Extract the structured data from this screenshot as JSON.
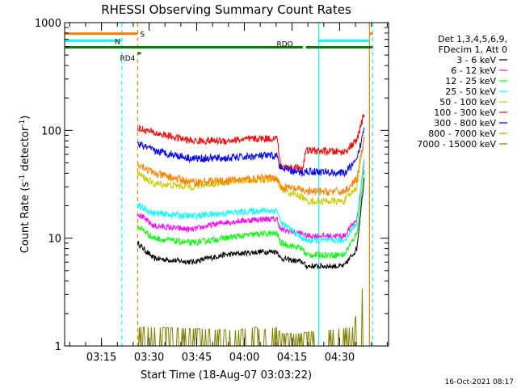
{
  "chart_data": {
    "type": "line",
    "title": "RHESSI Observing Summary Count Rates",
    "xlabel": "Start Time (18-Aug-07 03:03:22)",
    "ylabel_main": "Count Rate (s",
    "ylabel_sup1": "-1",
    "ylabel_mid": " detector",
    "ylabel_sup2": "-1",
    "ylabel_end": ")",
    "y_scale": "log",
    "ylim": [
      1,
      1000
    ],
    "xlim_minutes": [
      0,
      102
    ],
    "x_ticks": [
      {
        "label": "03:15",
        "minutes": 11.6
      },
      {
        "label": "03:30",
        "minutes": 26.6
      },
      {
        "label": "03:45",
        "minutes": 41.6
      },
      {
        "label": "04:00",
        "minutes": 56.6
      },
      {
        "label": "04:15",
        "minutes": 71.6
      },
      {
        "label": "04:30",
        "minutes": 86.6
      }
    ],
    "y_ticks": [
      {
        "label": "1",
        "value": 1
      },
      {
        "label": "10",
        "value": 10
      },
      {
        "label": "100",
        "value": 100
      },
      {
        "label": "1000",
        "value": 1000
      }
    ],
    "legend_header": [
      "Det 1,3,4,5,6,9,",
      "FDecim 1, Att 0"
    ],
    "legend_position": "right",
    "series": [
      {
        "name": "3 - 6 keV",
        "color": "#000000",
        "x": [
          23,
          28,
          40,
          50,
          62,
          67,
          68,
          75,
          76,
          88,
          92,
          94.5
        ],
        "y": [
          9,
          6.5,
          6,
          7,
          7.5,
          7.5,
          6.5,
          6,
          5.5,
          5.5,
          8,
          40
        ]
      },
      {
        "name": "6 - 12 keV",
        "color": "#ff00ff",
        "x": [
          23,
          28,
          40,
          50,
          62,
          67,
          68,
          75,
          76,
          88,
          92,
          94.5
        ],
        "y": [
          17,
          13,
          12,
          14,
          15,
          15,
          12,
          11,
          10.5,
          10.5,
          15,
          55
        ]
      },
      {
        "name": "12 - 25 keV",
        "color": "#00ff00",
        "x": [
          23,
          28,
          40,
          50,
          62,
          67,
          68,
          75,
          76,
          88,
          92,
          94.5
        ],
        "y": [
          13,
          10,
          9,
          10,
          11,
          11,
          9,
          8,
          7,
          7,
          11,
          45
        ]
      },
      {
        "name": "25 - 50 keV",
        "color": "#00ffff",
        "x": [
          23,
          28,
          40,
          50,
          62,
          67,
          68,
          75,
          76,
          88,
          92,
          94.5
        ],
        "y": [
          20,
          17,
          16,
          17,
          18,
          18,
          14,
          10,
          9.5,
          9.5,
          14,
          60
        ]
      },
      {
        "name": "50 - 100 keV",
        "color": "#cccc00",
        "x": [
          23,
          28,
          40,
          50,
          62,
          67,
          68,
          75,
          76,
          88,
          92,
          94.5
        ],
        "y": [
          40,
          32,
          30,
          33,
          35,
          35,
          28,
          24,
          22,
          22,
          30,
          90
        ]
      },
      {
        "name": "100 - 300 keV",
        "color": "#ff0000",
        "x": [
          23,
          28,
          40,
          50,
          62,
          67,
          68,
          75,
          76,
          88,
          92,
          94.5
        ],
        "y": [
          105,
          95,
          80,
          80,
          84,
          84,
          46,
          45,
          65,
          63,
          80,
          150
        ]
      },
      {
        "name": "300 - 800 keV",
        "color": "#0000ff",
        "x": [
          23,
          28,
          40,
          50,
          62,
          67,
          68,
          75,
          76,
          88,
          92,
          94.5
        ],
        "y": [
          75,
          65,
          55,
          55,
          58,
          58,
          44,
          40,
          42,
          40,
          52,
          110
        ]
      },
      {
        "name": "800 - 7000 keV",
        "color": "#ff8000",
        "x": [
          23,
          28,
          40,
          50,
          62,
          67,
          68,
          75,
          76,
          88,
          92,
          94.5
        ],
        "y": [
          50,
          40,
          33,
          34,
          36,
          36,
          30,
          28,
          27,
          27,
          35,
          90
        ]
      },
      {
        "name": "7000 - 15000 keV",
        "color": "#808000",
        "x": [
          23,
          26,
          54,
          60,
          62,
          67,
          68,
          73,
          91,
          93,
          94.5
        ],
        "y": [
          1.5,
          1.5,
          1.4,
          1.5,
          1.4,
          1.5,
          1.3,
          1.3,
          1.5,
          3,
          4
        ]
      }
    ],
    "flag_bars": [
      {
        "label": "S",
        "color": "#ff8000",
        "value": 790,
        "segments": [
          [
            0,
            23
          ],
          [
            96,
            97
          ]
        ]
      },
      {
        "label": "N",
        "color": "#00ffff",
        "value": 680,
        "segments": [
          [
            0,
            18
          ],
          [
            80,
            96
          ]
        ]
      },
      {
        "label": "RDO",
        "color": "#007f00",
        "value": 590,
        "segments": [
          [
            0,
            66
          ],
          [
            66,
            75
          ],
          [
            76,
            97
          ]
        ]
      },
      {
        "label": "RD4",
        "color": "#007f00",
        "value": 520,
        "segments": [
          [
            23,
            24
          ]
        ]
      }
    ],
    "vlines": [
      {
        "minutes": 18,
        "color": "#00ffff",
        "style": "dashed"
      },
      {
        "minutes": 23,
        "color": "#ff8000",
        "style": "dashed"
      },
      {
        "minutes": 80,
        "color": "#00ffff",
        "style": "solid"
      },
      {
        "minutes": 96,
        "color": "#ff8000",
        "style": "solid"
      },
      {
        "minutes": 97,
        "color": "#00ffff",
        "style": "dashed"
      }
    ],
    "timestamp": "16-Oct-2021 08:17"
  }
}
